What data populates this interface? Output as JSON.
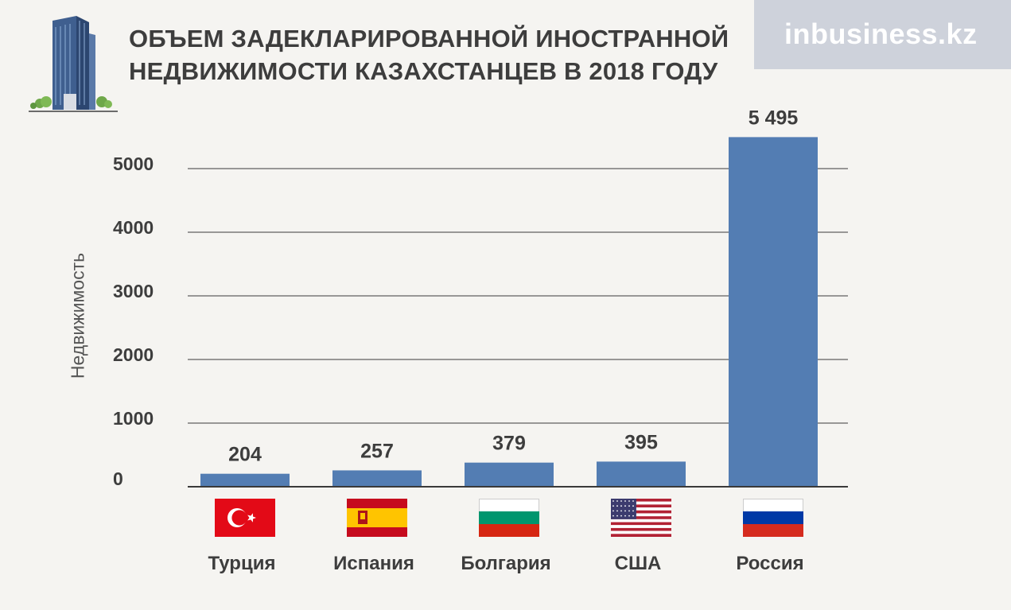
{
  "header": {
    "title_line1": "ОБЪЕМ ЗАДЕКЛАРИРОВАННОЙ ИНОСТРАННОЙ",
    "title_line2": "НЕДВИЖИМОСТИ КАЗАХСТАНЦЕВ В 2018 ГОДУ",
    "logo": "inbusiness.kz"
  },
  "colors": {
    "bar": "#537db3",
    "grid": "#3a3a3a",
    "text": "#3d3d3d",
    "logo_bg": "#ced2db"
  },
  "icons": [
    "building-icon",
    "turkey-flag-icon",
    "spain-flag-icon",
    "bulgaria-flag-icon",
    "usa-flag-icon",
    "russia-flag-icon"
  ],
  "chart_data": {
    "type": "bar",
    "title": "ОБЪЕМ ЗАДЕКЛАРИРОВАННОЙ ИНОСТРАННОЙ НЕДВИЖИМОСТИ КАЗАХСТАНЦЕВ В 2018 ГОДУ",
    "xlabel": "",
    "ylabel": "Недвижимость",
    "categories": [
      "Турция",
      "Испания",
      "Болгария",
      "США",
      "Россия"
    ],
    "values": [
      204,
      257,
      379,
      395,
      5495
    ],
    "value_labels": [
      "204",
      "257",
      "379",
      "395",
      "5 495"
    ],
    "yticks": [
      "0",
      "1000",
      "2000",
      "3000",
      "4000",
      "5000"
    ],
    "ylim": [
      0,
      5000
    ],
    "grid": true
  }
}
